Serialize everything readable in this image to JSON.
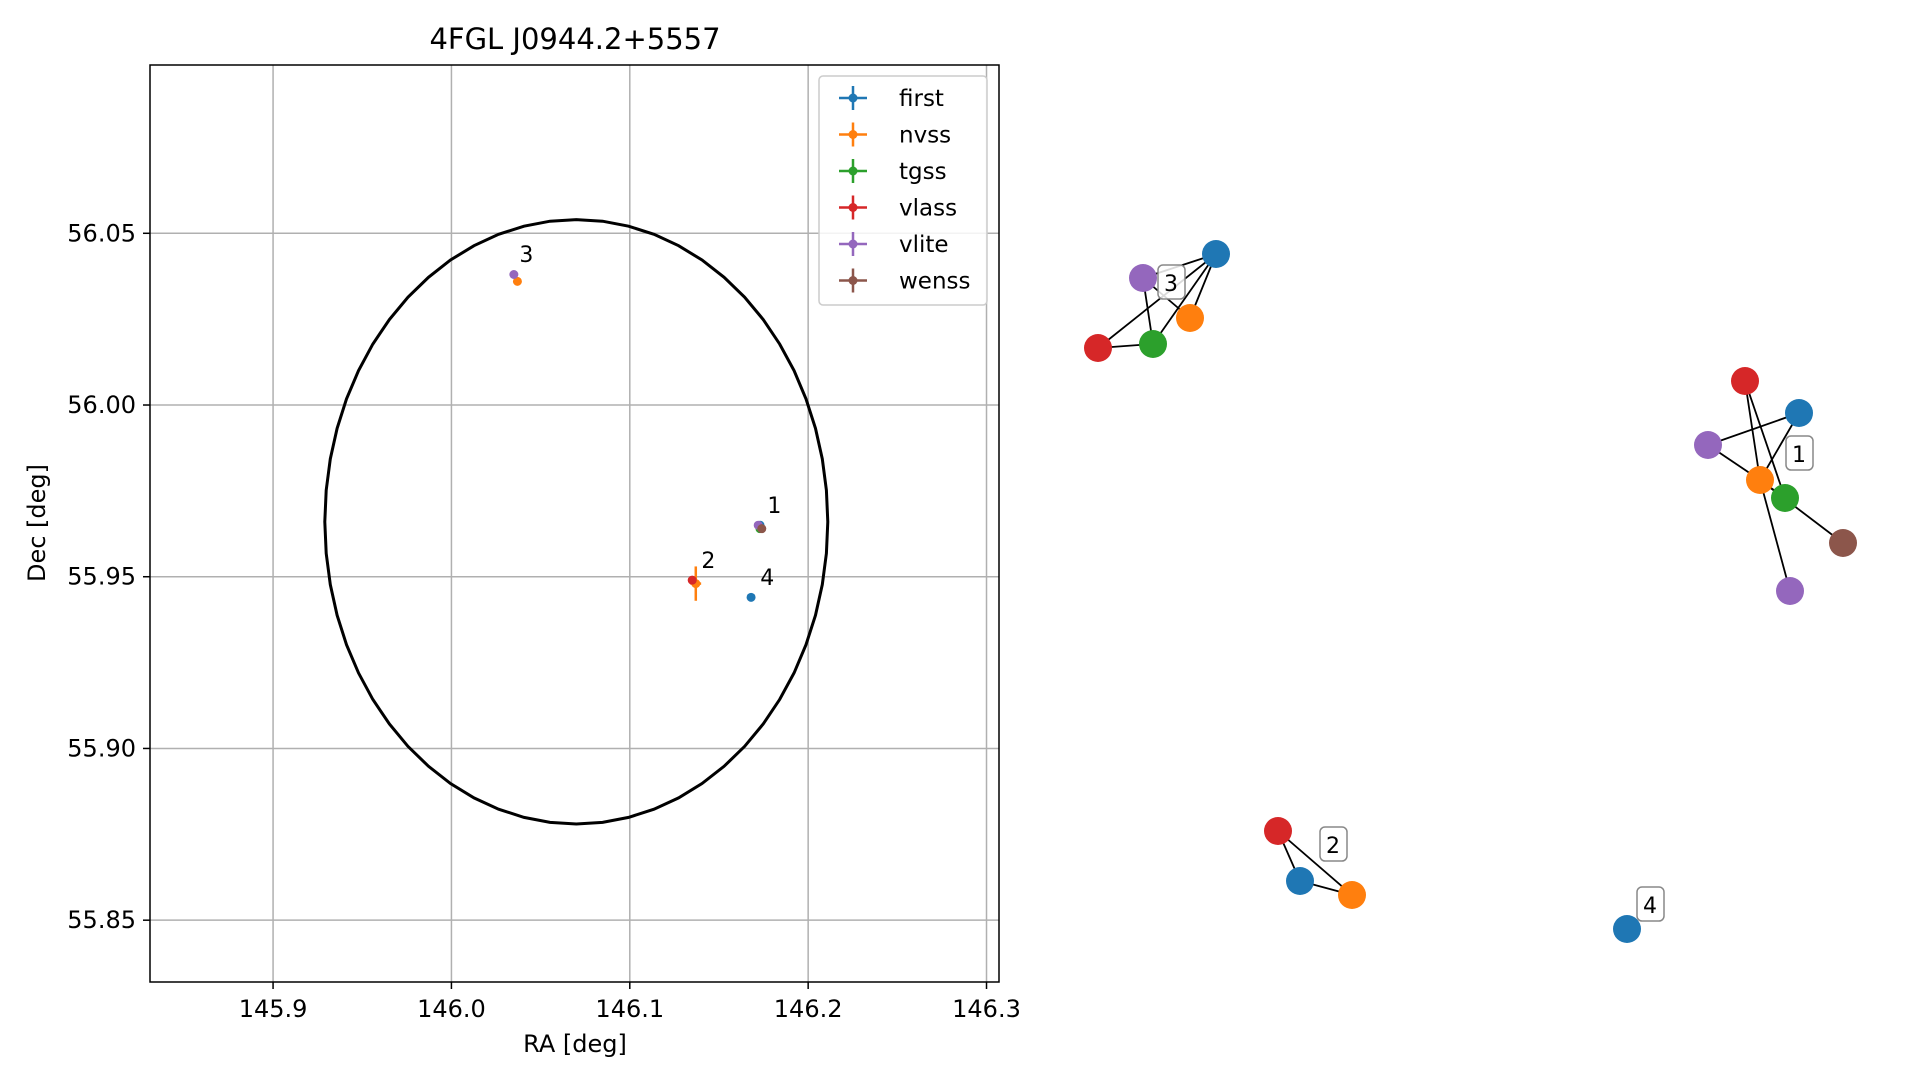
{
  "chart_data": [
    {
      "type": "scatter",
      "title": "4FGL J0944.2+5557",
      "xlabel": "RA [deg]",
      "ylabel": "Dec [deg]",
      "xlim": [
        145.831,
        146.307
      ],
      "ylim": [
        55.832,
        56.099
      ],
      "xticks": [
        "145.9",
        "146.0",
        "146.1",
        "146.2",
        "146.3"
      ],
      "yticks": [
        "55.85",
        "55.90",
        "55.95",
        "56.00",
        "56.05"
      ],
      "grid": true,
      "legend_position": "top-right",
      "ellipse": {
        "center_ra": 146.07,
        "center_dec": 55.966,
        "half_width_ra": 0.141,
        "half_height_dec": 0.088,
        "color": "#000000"
      },
      "series": [
        {
          "name": "first",
          "color": "#1f77b4",
          "points": [
            {
              "label": "4",
              "ra": 146.168,
              "dec": 55.944
            },
            {
              "label": "1",
              "ra": 146.173,
              "dec": 55.965
            }
          ]
        },
        {
          "name": "nvss",
          "color": "#ff7f0e",
          "points": [
            {
              "label": "2",
              "ra": 146.137,
              "dec": 55.948,
              "err_ra": 0.003,
              "err_dec": 0.005
            },
            {
              "label": "3",
              "ra": 146.037,
              "dec": 56.036
            }
          ]
        },
        {
          "name": "tgss",
          "color": "#2ca02c",
          "points": [
            {
              "label": "1",
              "ra": 146.173,
              "dec": 55.964
            }
          ]
        },
        {
          "name": "vlass",
          "color": "#d62728",
          "points": [
            {
              "label": "2",
              "ra": 146.135,
              "dec": 55.949
            }
          ]
        },
        {
          "name": "vlite",
          "color": "#9467bd",
          "points": [
            {
              "label": "3",
              "ra": 146.035,
              "dec": 56.038
            },
            {
              "label": "1",
              "ra": 146.172,
              "dec": 55.965
            }
          ]
        },
        {
          "name": "wenss",
          "color": "#8c564b",
          "points": [
            {
              "label": "1",
              "ra": 146.174,
              "dec": 55.964
            }
          ]
        }
      ],
      "source_labels": [
        "1",
        "2",
        "3",
        "4"
      ]
    },
    {
      "type": "network",
      "groups": [
        {
          "label": "3",
          "nodes": [
            "vlite",
            "first",
            "nvss",
            "vlass",
            "tgss"
          ],
          "edges": [
            [
              "vlite",
              "first"
            ],
            [
              "vlite",
              "nvss"
            ],
            [
              "vlite",
              "tgss"
            ],
            [
              "vlass",
              "tgss"
            ],
            [
              "vlass",
              "first"
            ],
            [
              "tgss",
              "first"
            ],
            [
              "nvss",
              "first"
            ]
          ]
        },
        {
          "label": "1",
          "nodes": [
            "vlass",
            "first",
            "vlite",
            "nvss",
            "tgss",
            "wenss",
            "vlite"
          ],
          "edges": [
            [
              "vlass",
              "nvss"
            ],
            [
              "vlass",
              "tgss"
            ],
            [
              "first",
              "nvss"
            ],
            [
              "vlite",
              "nvss"
            ],
            [
              "vlite",
              "first"
            ],
            [
              "nvss",
              "tgss"
            ],
            [
              "nvss",
              "wenss"
            ],
            [
              "nvss",
              "vlite-2"
            ]
          ]
        },
        {
          "label": "2",
          "nodes": [
            "vlass",
            "first",
            "nvss"
          ],
          "edges": [
            [
              "vlass",
              "first"
            ],
            [
              "vlass",
              "nvss"
            ],
            [
              "first",
              "nvss"
            ]
          ]
        },
        {
          "label": "4",
          "nodes": [
            "first"
          ],
          "edges": []
        }
      ]
    }
  ]
}
